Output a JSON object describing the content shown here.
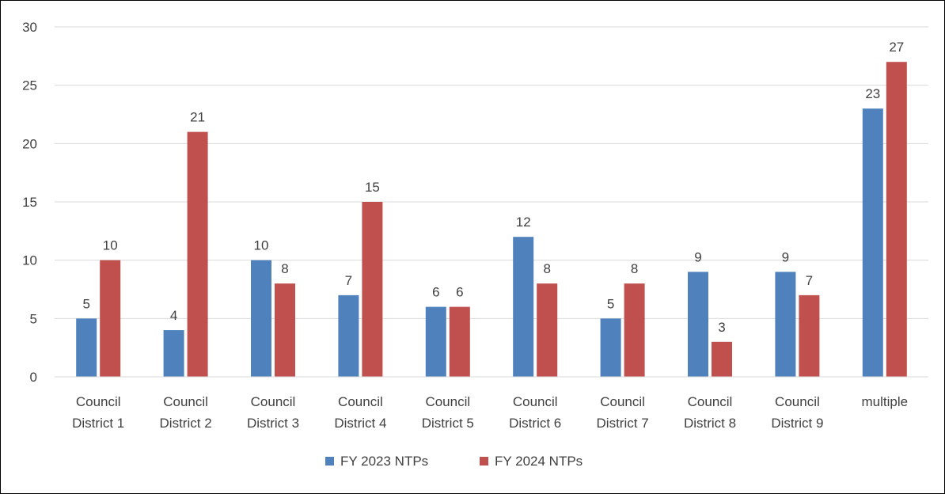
{
  "chart_data": {
    "type": "bar",
    "title": "",
    "xlabel": "",
    "ylabel": "",
    "ylim": [
      0,
      30
    ],
    "yticks": [
      0,
      5,
      10,
      15,
      20,
      25,
      30
    ],
    "grid": true,
    "legend_position": "bottom",
    "categories": [
      [
        "Council",
        "District 1"
      ],
      [
        "Council",
        "District 2"
      ],
      [
        "Council",
        "District 3"
      ],
      [
        "Council",
        "District 4"
      ],
      [
        "Council",
        "District 5"
      ],
      [
        "Council",
        "District 6"
      ],
      [
        "Council",
        "District 7"
      ],
      [
        "Council",
        "District 8"
      ],
      [
        "Council",
        "District 9"
      ],
      [
        "multiple"
      ]
    ],
    "series": [
      {
        "name": "FY 2023 NTPs",
        "color": "#4F81BD",
        "values": [
          5,
          4,
          10,
          7,
          6,
          12,
          5,
          9,
          9,
          23
        ]
      },
      {
        "name": "FY 2024 NTPs",
        "color": "#C0504D",
        "values": [
          10,
          21,
          8,
          15,
          6,
          8,
          8,
          3,
          7,
          27
        ]
      }
    ]
  },
  "colors": {
    "gridline": "#D9D9D9",
    "text": "#404040",
    "border": "#000000"
  }
}
